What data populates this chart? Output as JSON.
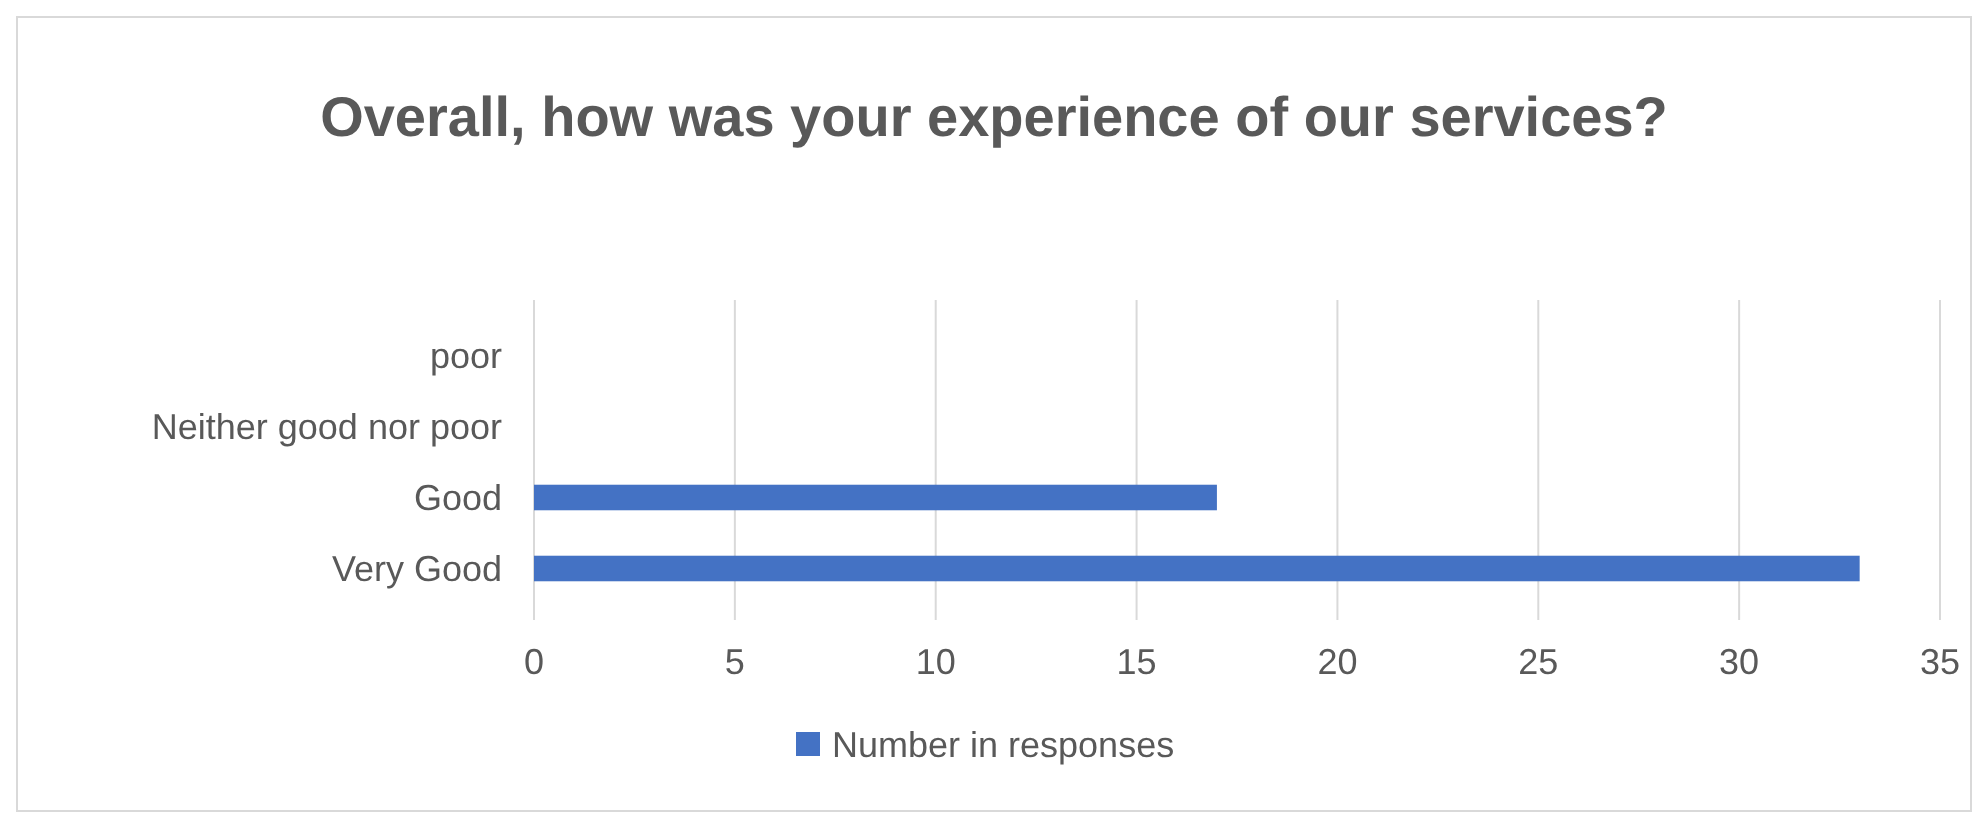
{
  "chart_data": {
    "type": "bar",
    "orientation": "horizontal",
    "title": "Overall, how was your experience of our services?",
    "categories": [
      "poor",
      "Neither good nor poor",
      "Good",
      "Very Good"
    ],
    "series": [
      {
        "name": "Number in responses",
        "color": "#4472c4",
        "values": [
          0,
          0,
          17,
          33
        ]
      }
    ],
    "xlim": [
      0,
      35
    ],
    "xticks": [
      0,
      5,
      10,
      15,
      20,
      25,
      30,
      35
    ],
    "grid": "x",
    "legend": "bottom"
  }
}
